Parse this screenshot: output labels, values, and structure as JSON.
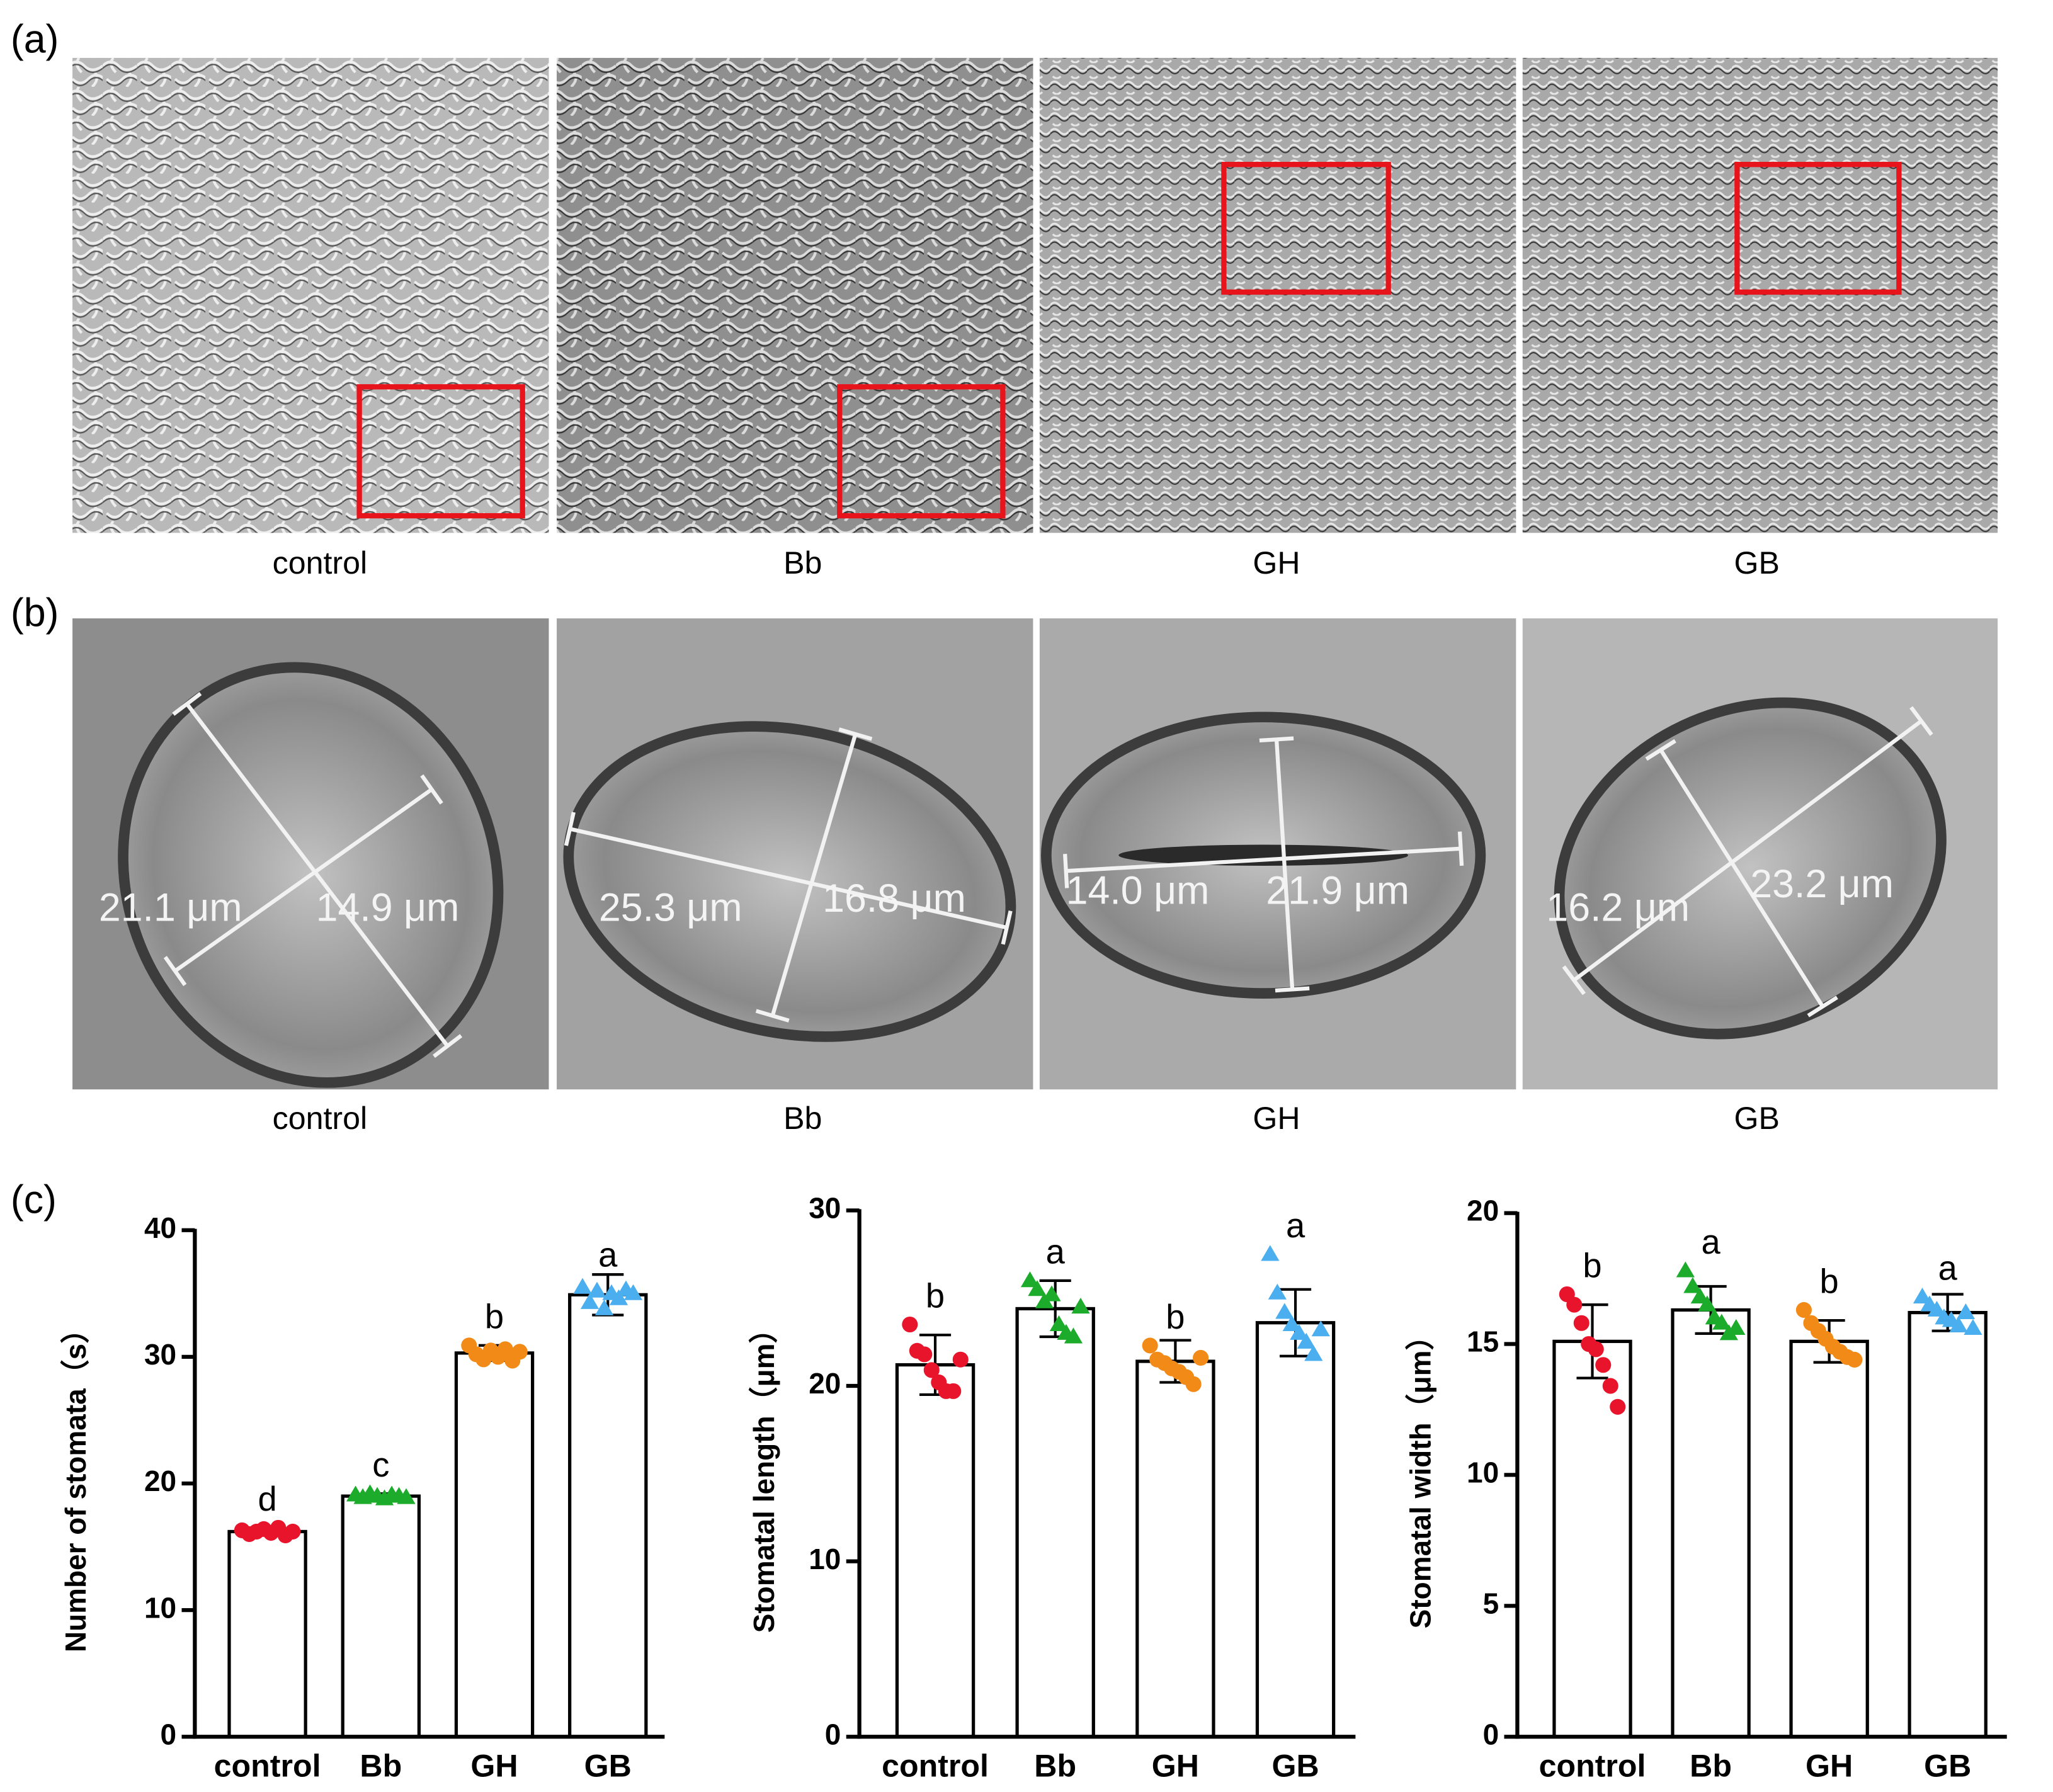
{
  "figure": {
    "label_a": "(a)",
    "label_b": "(b)",
    "label_c": "(c)",
    "captions_a": [
      "control",
      "Bb",
      "GH",
      "GB"
    ],
    "captions_b": [
      "control",
      "Bb",
      "GH",
      "GB"
    ],
    "measurements": [
      [
        "21.1 μm",
        "14.9 μm"
      ],
      [
        "25.3 μm",
        "16.8 μm"
      ],
      [
        "14.0 μm",
        "21.9 μm"
      ],
      [
        "16.2 μm",
        "23.2 μm"
      ]
    ]
  },
  "chart_data": [
    {
      "type": "bar",
      "y_label": "Number of stomata（s）",
      "categories": [
        "control",
        "Bb",
        "GH",
        "GB"
      ],
      "values": [
        16.2,
        19.0,
        30.3,
        34.9
      ],
      "errors": [
        0.3,
        0.2,
        0.6,
        1.6
      ],
      "annotations": [
        "d",
        "c",
        "b",
        "a"
      ],
      "points": [
        [
          16.3,
          16.0,
          16.2,
          16.4,
          16.1,
          16.5,
          15.9,
          16.2
        ],
        [
          19.1,
          18.9,
          19.2,
          19.0,
          18.8,
          19.1,
          19.0,
          18.9
        ],
        [
          30.9,
          30.2,
          29.8,
          30.5,
          30.0,
          30.6,
          29.7,
          30.4
        ],
        [
          35.5,
          34.3,
          35.2,
          33.8,
          35.0,
          34.6,
          35.3,
          35.0
        ]
      ],
      "point_colors": [
        "#e8142c",
        "#1cab2b",
        "#f28a17",
        "#4aaeef"
      ],
      "point_markers": [
        "circle",
        "triangle",
        "circle",
        "triangle"
      ],
      "bar_color": "#ffffff",
      "ylim": [
        0,
        40
      ],
      "yticks": [
        0,
        10,
        20,
        30,
        40
      ]
    },
    {
      "type": "bar",
      "y_label": "Stomatal length（μm）",
      "categories": [
        "control",
        "Bb",
        "GH",
        "GB"
      ],
      "values": [
        21.2,
        24.4,
        21.4,
        23.6
      ],
      "errors": [
        1.7,
        1.6,
        1.2,
        1.9
      ],
      "annotations": [
        "b",
        "a",
        "b",
        "a"
      ],
      "points": [
        [
          23.5,
          22.0,
          21.8,
          20.9,
          20.2,
          19.7,
          19.7,
          21.5
        ],
        [
          26.0,
          25.5,
          24.8,
          25.2,
          23.5,
          23.0,
          22.8,
          24.5
        ],
        [
          22.3,
          21.5,
          21.3,
          21.0,
          20.8,
          20.5,
          20.1,
          21.6
        ],
        [
          27.5,
          25.3,
          24.2,
          23.5,
          23.0,
          22.5,
          21.8,
          23.2
        ]
      ],
      "point_colors": [
        "#e8142c",
        "#1cab2b",
        "#f28a17",
        "#4aaeef"
      ],
      "point_markers": [
        "circle",
        "triangle",
        "circle",
        "triangle"
      ],
      "bar_color": "#ffffff",
      "ylim": [
        0,
        30
      ],
      "yticks": [
        0,
        10,
        20,
        30
      ]
    },
    {
      "type": "bar",
      "y_label": "Stomatal width（μm）",
      "categories": [
        "control",
        "Bb",
        "GH",
        "GB"
      ],
      "values": [
        15.1,
        16.3,
        15.1,
        16.2
      ],
      "errors": [
        1.4,
        0.9,
        0.8,
        0.7
      ],
      "annotations": [
        "b",
        "a",
        "b",
        "a"
      ],
      "points": [
        [
          16.9,
          16.5,
          15.8,
          15.0,
          14.8,
          14.2,
          13.4,
          12.6
        ],
        [
          17.8,
          17.2,
          16.8,
          16.5,
          16.0,
          15.8,
          15.4,
          15.6
        ],
        [
          16.3,
          15.8,
          15.5,
          15.2,
          14.9,
          14.7,
          14.5,
          14.4
        ],
        [
          16.8,
          16.5,
          16.3,
          16.0,
          15.9,
          15.7,
          16.2,
          15.6
        ]
      ],
      "point_colors": [
        "#e8142c",
        "#1cab2b",
        "#f28a17",
        "#4aaeef"
      ],
      "point_markers": [
        "circle",
        "triangle",
        "circle",
        "triangle"
      ],
      "bar_color": "#ffffff",
      "ylim": [
        0,
        20
      ],
      "yticks": [
        0,
        5,
        10,
        15,
        20
      ]
    }
  ]
}
